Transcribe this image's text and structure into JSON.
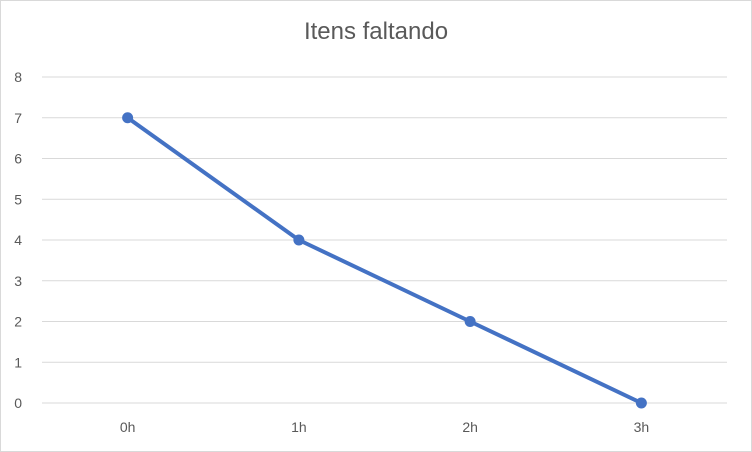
{
  "chart_data": {
    "type": "line",
    "title": "Itens faltando",
    "xlabel": "",
    "ylabel": "",
    "categories": [
      "0h",
      "1h",
      "2h",
      "3h"
    ],
    "series": [
      {
        "values": [
          7,
          4,
          2,
          0
        ]
      }
    ],
    "ylim": [
      0,
      8
    ],
    "yticks": [
      "0",
      "1",
      "2",
      "3",
      "4",
      "5",
      "6",
      "7",
      "8"
    ],
    "grid": true,
    "legend": "none",
    "colors": {
      "line": "#4472c4",
      "grid": "#d9d9d9",
      "text": "#595959"
    }
  }
}
